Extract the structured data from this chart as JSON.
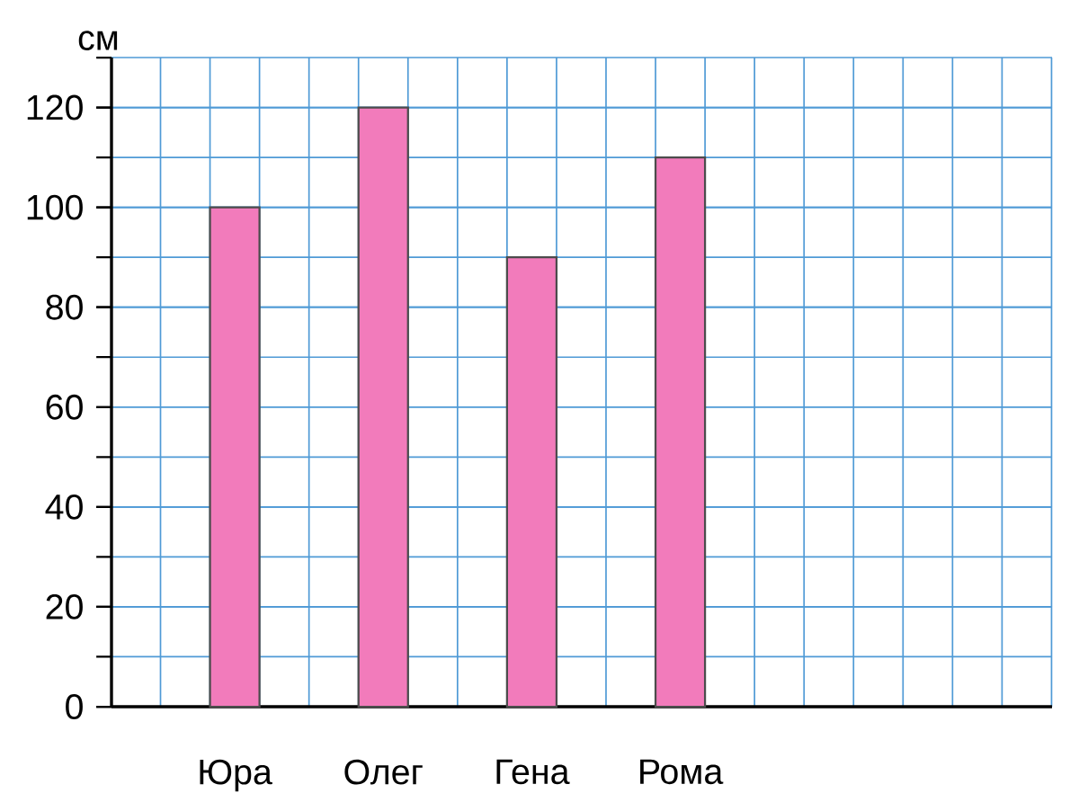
{
  "chart_data": {
    "type": "bar",
    "ylabel": "см",
    "categories": [
      "Юра",
      "Олег",
      "Гена",
      "Рома"
    ],
    "values": [
      100,
      120,
      90,
      110
    ],
    "color": "#f27bbb",
    "ylim": [
      0,
      130
    ],
    "yticks": [
      0,
      20,
      40,
      60,
      80,
      100,
      120
    ],
    "grid": true
  }
}
